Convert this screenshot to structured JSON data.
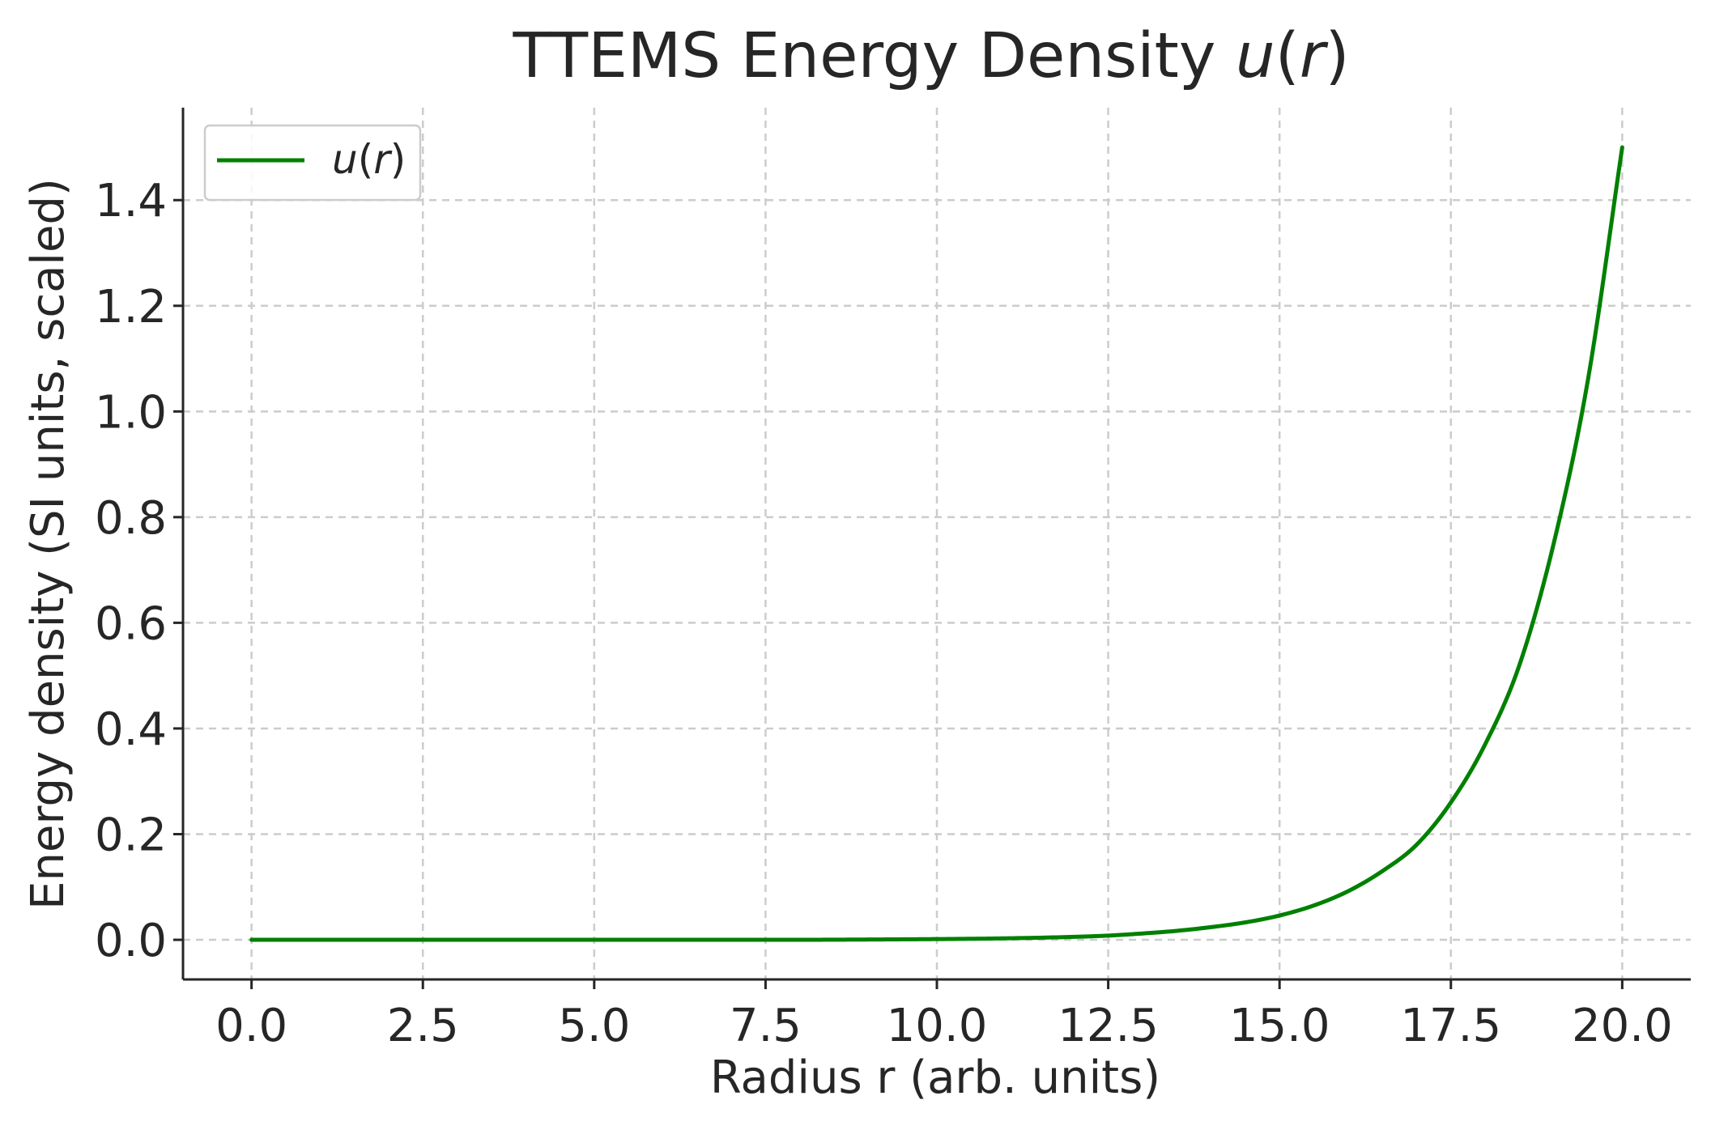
{
  "chart_data": {
    "type": "line",
    "title": "TTEMS Energy Density u(r)",
    "title_main": "TTEMS Energy Density ",
    "title_math": "u",
    "title_open": "(",
    "title_var": "r",
    "title_close": ")",
    "xlabel": "Radius r (arb. units)",
    "ylabel": "Energy density (SI units, scaled)",
    "xlim": [
      -1.0,
      21.0
    ],
    "ylim": [
      -0.075,
      1.575
    ],
    "xticks": [
      0.0,
      2.5,
      5.0,
      7.5,
      10.0,
      12.5,
      15.0,
      17.5,
      20.0
    ],
    "xtick_labels": [
      "0.0",
      "2.5",
      "5.0",
      "7.5",
      "10.0",
      "12.5",
      "15.0",
      "17.5",
      "20.0"
    ],
    "yticks": [
      0.0,
      0.2,
      0.4,
      0.6,
      0.8,
      1.0,
      1.2,
      1.4
    ],
    "ytick_labels": [
      "0.0",
      "0.2",
      "0.4",
      "0.6",
      "0.8",
      "1.0",
      "1.2",
      "1.4"
    ],
    "grid": true,
    "legend_position": "top-left",
    "series": [
      {
        "name": "u(r)",
        "legend_math": "u",
        "legend_open": "(",
        "legend_var": "r",
        "legend_close": ")",
        "color": "#008000",
        "x": [
          0,
          2.5,
          5,
          7.5,
          10,
          11,
          12,
          12.5,
          13,
          13.5,
          14,
          14.5,
          15,
          15.5,
          16,
          16.5,
          17,
          17.5,
          18,
          18.5,
          19,
          19.5,
          20
        ],
        "y": [
          0.0,
          0.0,
          0.0,
          0.0,
          0.0014,
          0.0028,
          0.0056,
          0.008,
          0.012,
          0.017,
          0.024,
          0.033,
          0.046,
          0.065,
          0.092,
          0.13,
          0.18,
          0.26,
          0.37,
          0.52,
          0.75,
          1.06,
          1.5
        ]
      }
    ]
  }
}
